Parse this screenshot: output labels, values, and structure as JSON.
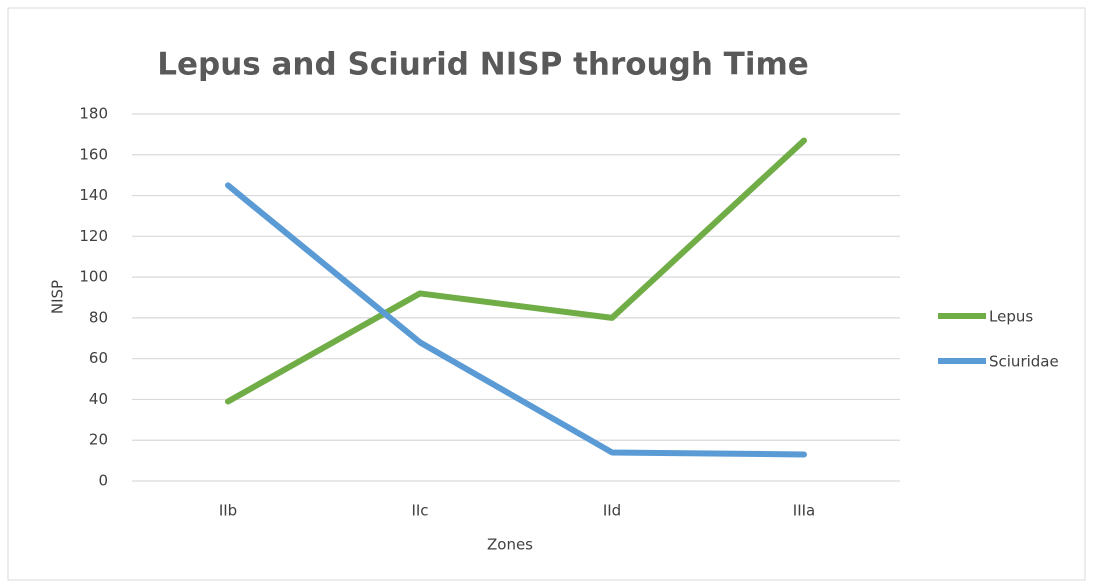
{
  "chart_data": {
    "type": "line",
    "title": "Lepus and Sciurid NISP through Time",
    "x_label": "Zones",
    "y_label": "NISP",
    "categories": [
      "IIb",
      "IIc",
      "IId",
      "IIIa"
    ],
    "series": [
      {
        "name": "Lepus",
        "color": "#70ad47",
        "values": [
          39,
          92,
          80,
          167
        ]
      },
      {
        "name": "Sciuridae",
        "color": "#5b9bd5",
        "values": [
          145,
          68,
          14,
          13
        ]
      }
    ],
    "ylim": [
      0,
      180
    ],
    "yticks": [
      0,
      20,
      40,
      60,
      80,
      100,
      120,
      140,
      160,
      180
    ],
    "grid": true,
    "legend": "right"
  }
}
